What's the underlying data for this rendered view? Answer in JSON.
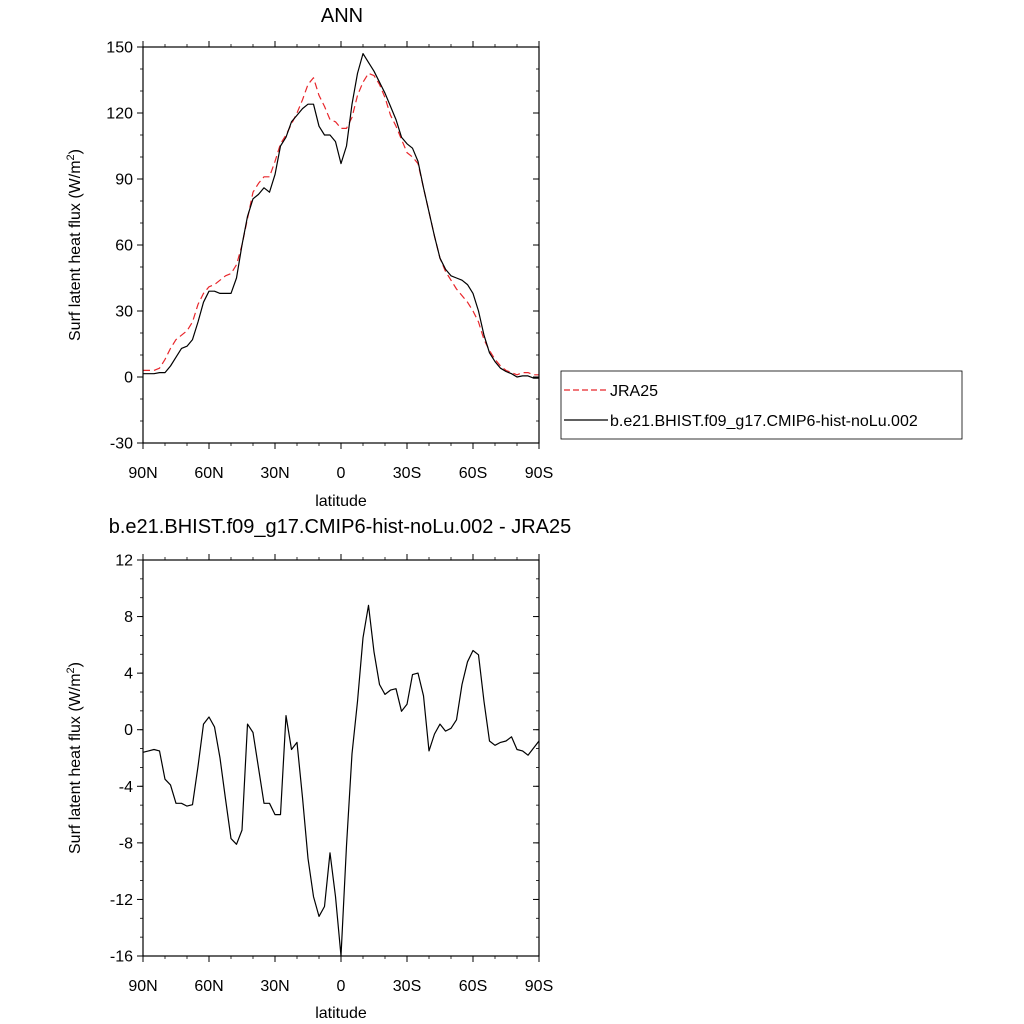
{
  "chart_data": [
    {
      "type": "line",
      "title": "ANN",
      "xlabel": "latitude",
      "ylabel": "Surf latent heat flux (W/m",
      "ylabel_sup": "2",
      "ylabel_close": ")",
      "xlim": [
        90,
        -90
      ],
      "ylim": [
        -30,
        150
      ],
      "xticks": [
        90,
        60,
        30,
        0,
        -30,
        -60,
        -90
      ],
      "xtick_labels": [
        "90N",
        "60N",
        "30N",
        "0",
        "30S",
        "60S",
        "90S"
      ],
      "yticks": [
        -30,
        0,
        30,
        60,
        90,
        120,
        150
      ],
      "ytick_labels": [
        "-30",
        "0",
        "30",
        "60",
        "90",
        "120",
        "150"
      ],
      "legend": {
        "placement": "right",
        "entries": [
          "JRA25",
          "b.e21.BHIST.f09_g17.CMIP6-hist-noLu.002"
        ]
      },
      "series": [
        {
          "name": "JRA25",
          "color": "#e8262b",
          "style": "dashed",
          "x": [
            90,
            87.5,
            85,
            82.5,
            80,
            77.5,
            75,
            72.5,
            70,
            67.5,
            65,
            62.5,
            60,
            57.5,
            55,
            52.5,
            50,
            47.5,
            45,
            42.5,
            40,
            37.5,
            35,
            32.5,
            30,
            27.5,
            25,
            22.5,
            20,
            17.5,
            15,
            12.5,
            10,
            7.5,
            5,
            2.5,
            0,
            -2.5,
            -5,
            -7.5,
            -10,
            -12.5,
            -15,
            -17.5,
            -20,
            -22.5,
            -25,
            -27.5,
            -30,
            -32.5,
            -35,
            -37.5,
            -40,
            -42.5,
            -45,
            -47.5,
            -50,
            -52.5,
            -55,
            -57.5,
            -60,
            -62.5,
            -65,
            -67.5,
            -70,
            -72.5,
            -75,
            -77.5,
            -80,
            -82.5,
            -85,
            -87.5,
            -90
          ],
          "y": [
            3,
            3,
            3,
            4,
            8,
            13,
            17,
            19,
            21,
            25,
            33,
            38,
            41,
            42,
            44,
            46,
            47,
            51,
            60,
            72,
            84,
            88,
            91,
            91,
            98,
            106,
            110,
            115,
            120,
            126,
            133,
            136,
            128,
            123,
            117,
            116,
            113,
            113,
            118,
            128,
            134,
            138,
            137,
            133,
            127,
            119,
            114,
            108,
            102,
            100,
            97,
            86,
            75,
            64,
            54,
            48,
            44,
            40,
            37,
            34,
            30,
            25,
            17,
            12,
            8,
            5,
            3,
            2,
            1,
            2,
            2,
            1,
            1
          ]
        },
        {
          "name": "b.e21.BHIST.f09_g17.CMIP6-hist-noLu.002",
          "color": "#000000",
          "style": "solid",
          "x": [
            90,
            87.5,
            85,
            82.5,
            80,
            77.5,
            75,
            72.5,
            70,
            67.5,
            65,
            62.5,
            60,
            57.5,
            55,
            52.5,
            50,
            47.5,
            45,
            42.5,
            40,
            37.5,
            35,
            32.5,
            30,
            27.5,
            25,
            22.5,
            20,
            17.5,
            15,
            12.5,
            10,
            7.5,
            5,
            2.5,
            0,
            -2.5,
            -5,
            -7.5,
            -10,
            -12.5,
            -15,
            -17.5,
            -20,
            -22.5,
            -25,
            -27.5,
            -30,
            -32.5,
            -35,
            -37.5,
            -40,
            -42.5,
            -45,
            -47.5,
            -50,
            -52.5,
            -55,
            -57.5,
            -60,
            -62.5,
            -65,
            -67.5,
            -70,
            -72.5,
            -75,
            -77.5,
            -80,
            -82.5,
            -85,
            -87.5,
            -90
          ],
          "y": [
            1.5,
            1.5,
            1.5,
            2,
            2,
            5,
            9,
            13,
            14,
            17,
            25,
            34,
            39,
            39,
            38,
            38,
            38,
            45,
            60,
            73,
            81,
            83,
            86,
            84,
            92,
            105,
            109,
            116,
            119,
            122,
            124,
            124,
            114,
            110,
            110,
            107,
            97,
            105,
            124,
            138,
            147,
            143,
            139,
            134,
            129,
            123,
            117,
            109,
            106,
            104,
            98,
            86,
            75,
            64,
            54,
            49,
            46,
            45,
            44,
            42,
            38,
            30,
            19,
            11,
            7,
            4,
            2.5,
            1.5,
            0,
            0.5,
            0.5,
            -0.5,
            -0.5
          ]
        }
      ]
    },
    {
      "type": "line",
      "title": "b.e21.BHIST.f09_g17.CMIP6-hist-noLu.002 - JRA25",
      "xlabel": "latitude",
      "ylabel": "Surf latent heat flux (W/m",
      "ylabel_sup": "2",
      "ylabel_close": ")",
      "xlim": [
        90,
        -90
      ],
      "ylim": [
        -16,
        12
      ],
      "xticks": [
        90,
        60,
        30,
        0,
        -30,
        -60,
        -90
      ],
      "xtick_labels": [
        "90N",
        "60N",
        "30N",
        "0",
        "30S",
        "60S",
        "90S"
      ],
      "yticks": [
        -16,
        -12,
        -8,
        -4,
        0,
        4,
        8,
        12
      ],
      "ytick_labels": [
        "-16",
        "-12",
        "-8",
        "-4",
        "0",
        "4",
        "8",
        "12"
      ],
      "series": [
        {
          "color": "#000000",
          "style": "solid",
          "x": [
            90,
            87.5,
            85,
            82.5,
            80,
            77.5,
            75,
            72.5,
            70,
            67.5,
            65,
            62.5,
            60,
            57.5,
            55,
            52.5,
            50,
            47.5,
            45,
            42.5,
            40,
            37.5,
            35,
            32.5,
            30,
            27.5,
            25,
            22.5,
            20,
            17.5,
            15,
            12.5,
            10,
            7.5,
            5,
            2.5,
            0,
            -2.5,
            -5,
            -7.5,
            -10,
            -12.5,
            -15,
            -17.5,
            -20,
            -22.5,
            -25,
            -27.5,
            -30,
            -32.5,
            -35,
            -37.5,
            -40,
            -42.5,
            -45,
            -47.5,
            -50,
            -52.5,
            -55,
            -57.5,
            -60,
            -62.5,
            -65,
            -67.5,
            -70,
            -72.5,
            -75,
            -77.5,
            -80,
            -82.5,
            -85,
            -87.5,
            -90
          ],
          "y": [
            -1.6,
            -1.5,
            -1.4,
            -1.5,
            -3.5,
            -3.9,
            -5.2,
            -5.2,
            -5.4,
            -5.3,
            -2.6,
            0.4,
            0.9,
            0.2,
            -2.0,
            -4.9,
            -7.7,
            -8.1,
            -7.1,
            0.4,
            -0.2,
            -2.7,
            -5.2,
            -5.2,
            -6.0,
            -6.0,
            1.0,
            -1.4,
            -0.9,
            -4.8,
            -9.1,
            -11.8,
            -13.2,
            -12.5,
            -8.7,
            -11.8,
            -16.0,
            -8.2,
            -1.7,
            2.0,
            6.5,
            8.8,
            5.5,
            3.2,
            2.5,
            2.8,
            2.9,
            1.3,
            1.8,
            3.9,
            4.0,
            2.4,
            -1.5,
            -0.3,
            0.4,
            -0.1,
            0.1,
            0.7,
            3.2,
            4.8,
            5.6,
            5.3,
            2.0,
            -0.8,
            -1.1,
            -0.9,
            -0.8,
            -0.5,
            -1.4,
            -1.5,
            -1.8,
            -1.3,
            -0.8
          ]
        }
      ]
    }
  ]
}
